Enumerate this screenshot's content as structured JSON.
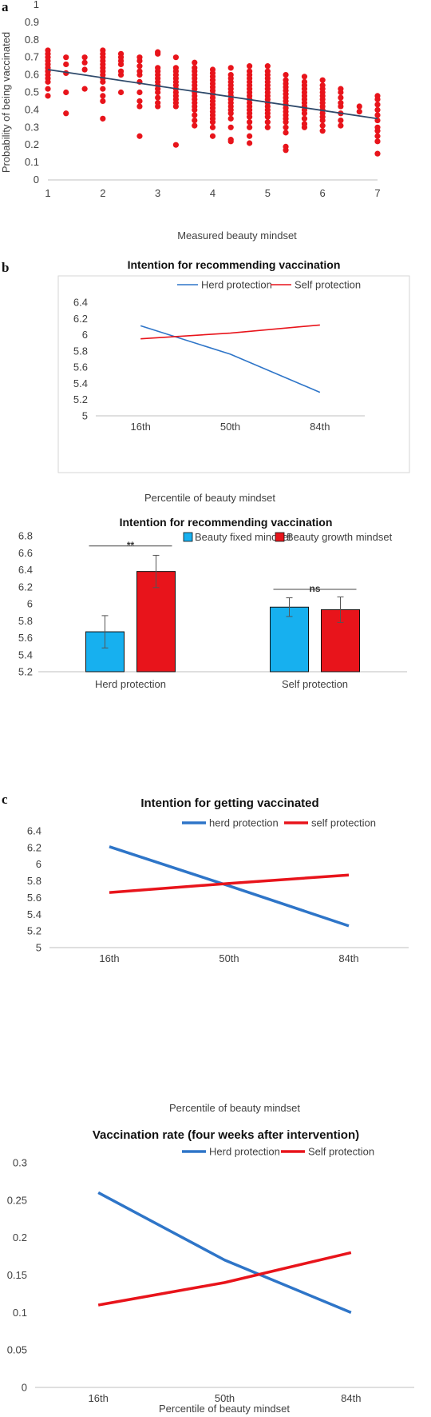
{
  "panel_labels": {
    "a": "a",
    "b": "b",
    "c": "c"
  },
  "chart_data": [
    {
      "id": "a",
      "type": "scatter",
      "title": "",
      "xlabel": "Measured beauty mindset",
      "ylabel": "Probability of being vaccinated",
      "xlim": [
        1,
        7
      ],
      "ylim": [
        0,
        1
      ],
      "xticks": [
        "1",
        "2",
        "3",
        "4",
        "5",
        "6",
        "7"
      ],
      "yticks": [
        "0",
        "0.1",
        "0.2",
        "0.3",
        "0.4",
        "0.5",
        "0.6",
        "0.7",
        "0.8",
        "0.9",
        "1"
      ],
      "point_color": "#e8141b",
      "trend_color": "#2f4a6b",
      "trendline": [
        [
          1,
          0.63
        ],
        [
          7,
          0.35
        ]
      ],
      "points": [
        [
          1,
          0.74
        ],
        [
          1,
          0.72
        ],
        [
          1,
          0.7
        ],
        [
          1,
          0.68
        ],
        [
          1,
          0.66
        ],
        [
          1,
          0.64
        ],
        [
          1,
          0.62
        ],
        [
          1,
          0.6
        ],
        [
          1,
          0.58
        ],
        [
          1,
          0.56
        ],
        [
          1,
          0.52
        ],
        [
          1,
          0.48
        ],
        [
          1.33,
          0.7
        ],
        [
          1.33,
          0.66
        ],
        [
          1.33,
          0.61
        ],
        [
          1.33,
          0.5
        ],
        [
          1.33,
          0.38
        ],
        [
          1.67,
          0.7
        ],
        [
          1.67,
          0.67
        ],
        [
          1.67,
          0.63
        ],
        [
          1.67,
          0.52
        ],
        [
          2,
          0.74
        ],
        [
          2,
          0.72
        ],
        [
          2,
          0.7
        ],
        [
          2,
          0.68
        ],
        [
          2,
          0.66
        ],
        [
          2,
          0.64
        ],
        [
          2,
          0.62
        ],
        [
          2,
          0.6
        ],
        [
          2,
          0.58
        ],
        [
          2,
          0.56
        ],
        [
          2,
          0.52
        ],
        [
          2,
          0.48
        ],
        [
          2,
          0.45
        ],
        [
          2,
          0.35
        ],
        [
          2.33,
          0.72
        ],
        [
          2.33,
          0.7
        ],
        [
          2.33,
          0.68
        ],
        [
          2.33,
          0.66
        ],
        [
          2.33,
          0.62
        ],
        [
          2.33,
          0.6
        ],
        [
          2.33,
          0.5
        ],
        [
          2.67,
          0.7
        ],
        [
          2.67,
          0.68
        ],
        [
          2.67,
          0.65
        ],
        [
          2.67,
          0.62
        ],
        [
          2.67,
          0.6
        ],
        [
          2.67,
          0.56
        ],
        [
          2.67,
          0.5
        ],
        [
          2.67,
          0.45
        ],
        [
          2.67,
          0.42
        ],
        [
          2.67,
          0.25
        ],
        [
          3,
          0.73
        ],
        [
          3,
          0.72
        ],
        [
          3,
          0.64
        ],
        [
          3,
          0.62
        ],
        [
          3,
          0.6
        ],
        [
          3,
          0.58
        ],
        [
          3,
          0.56
        ],
        [
          3,
          0.54
        ],
        [
          3,
          0.52
        ],
        [
          3,
          0.5
        ],
        [
          3,
          0.47
        ],
        [
          3,
          0.44
        ],
        [
          3,
          0.42
        ],
        [
          3.33,
          0.7
        ],
        [
          3.33,
          0.64
        ],
        [
          3.33,
          0.62
        ],
        [
          3.33,
          0.6
        ],
        [
          3.33,
          0.58
        ],
        [
          3.33,
          0.56
        ],
        [
          3.33,
          0.54
        ],
        [
          3.33,
          0.52
        ],
        [
          3.33,
          0.5
        ],
        [
          3.33,
          0.48
        ],
        [
          3.33,
          0.46
        ],
        [
          3.33,
          0.44
        ],
        [
          3.33,
          0.42
        ],
        [
          3.33,
          0.2
        ],
        [
          3.67,
          0.67
        ],
        [
          3.67,
          0.64
        ],
        [
          3.67,
          0.62
        ],
        [
          3.67,
          0.6
        ],
        [
          3.67,
          0.58
        ],
        [
          3.67,
          0.56
        ],
        [
          3.67,
          0.54
        ],
        [
          3.67,
          0.52
        ],
        [
          3.67,
          0.5
        ],
        [
          3.67,
          0.48
        ],
        [
          3.67,
          0.46
        ],
        [
          3.67,
          0.44
        ],
        [
          3.67,
          0.42
        ],
        [
          3.67,
          0.4
        ],
        [
          3.67,
          0.37
        ],
        [
          3.67,
          0.34
        ],
        [
          3.67,
          0.31
        ],
        [
          4,
          0.63
        ],
        [
          4,
          0.61
        ],
        [
          4,
          0.59
        ],
        [
          4,
          0.57
        ],
        [
          4,
          0.55
        ],
        [
          4,
          0.53
        ],
        [
          4,
          0.51
        ],
        [
          4,
          0.49
        ],
        [
          4,
          0.47
        ],
        [
          4,
          0.45
        ],
        [
          4,
          0.43
        ],
        [
          4,
          0.41
        ],
        [
          4,
          0.39
        ],
        [
          4,
          0.37
        ],
        [
          4,
          0.35
        ],
        [
          4,
          0.33
        ],
        [
          4,
          0.3
        ],
        [
          4,
          0.25
        ],
        [
          4.33,
          0.64
        ],
        [
          4.33,
          0.6
        ],
        [
          4.33,
          0.58
        ],
        [
          4.33,
          0.56
        ],
        [
          4.33,
          0.54
        ],
        [
          4.33,
          0.52
        ],
        [
          4.33,
          0.5
        ],
        [
          4.33,
          0.48
        ],
        [
          4.33,
          0.46
        ],
        [
          4.33,
          0.44
        ],
        [
          4.33,
          0.42
        ],
        [
          4.33,
          0.4
        ],
        [
          4.33,
          0.38
        ],
        [
          4.33,
          0.35
        ],
        [
          4.33,
          0.3
        ],
        [
          4.33,
          0.23
        ],
        [
          4.33,
          0.22
        ],
        [
          4.67,
          0.65
        ],
        [
          4.67,
          0.62
        ],
        [
          4.67,
          0.6
        ],
        [
          4.67,
          0.58
        ],
        [
          4.67,
          0.56
        ],
        [
          4.67,
          0.54
        ],
        [
          4.67,
          0.52
        ],
        [
          4.67,
          0.5
        ],
        [
          4.67,
          0.48
        ],
        [
          4.67,
          0.46
        ],
        [
          4.67,
          0.44
        ],
        [
          4.67,
          0.42
        ],
        [
          4.67,
          0.4
        ],
        [
          4.67,
          0.38
        ],
        [
          4.67,
          0.36
        ],
        [
          4.67,
          0.33
        ],
        [
          4.67,
          0.3
        ],
        [
          4.67,
          0.25
        ],
        [
          4.67,
          0.21
        ],
        [
          5,
          0.65
        ],
        [
          5,
          0.62
        ],
        [
          5,
          0.6
        ],
        [
          5,
          0.58
        ],
        [
          5,
          0.56
        ],
        [
          5,
          0.54
        ],
        [
          5,
          0.52
        ],
        [
          5,
          0.5
        ],
        [
          5,
          0.48
        ],
        [
          5,
          0.46
        ],
        [
          5,
          0.44
        ],
        [
          5,
          0.42
        ],
        [
          5,
          0.4
        ],
        [
          5,
          0.38
        ],
        [
          5,
          0.36
        ],
        [
          5,
          0.33
        ],
        [
          5,
          0.3
        ],
        [
          5.33,
          0.6
        ],
        [
          5.33,
          0.57
        ],
        [
          5.33,
          0.55
        ],
        [
          5.33,
          0.53
        ],
        [
          5.33,
          0.51
        ],
        [
          5.33,
          0.49
        ],
        [
          5.33,
          0.47
        ],
        [
          5.33,
          0.45
        ],
        [
          5.33,
          0.43
        ],
        [
          5.33,
          0.41
        ],
        [
          5.33,
          0.39
        ],
        [
          5.33,
          0.37
        ],
        [
          5.33,
          0.35
        ],
        [
          5.33,
          0.33
        ],
        [
          5.33,
          0.3
        ],
        [
          5.33,
          0.27
        ],
        [
          5.33,
          0.19
        ],
        [
          5.33,
          0.17
        ],
        [
          5.67,
          0.59
        ],
        [
          5.67,
          0.56
        ],
        [
          5.67,
          0.54
        ],
        [
          5.67,
          0.52
        ],
        [
          5.67,
          0.5
        ],
        [
          5.67,
          0.48
        ],
        [
          5.67,
          0.46
        ],
        [
          5.67,
          0.44
        ],
        [
          5.67,
          0.42
        ],
        [
          5.67,
          0.4
        ],
        [
          5.67,
          0.38
        ],
        [
          5.67,
          0.35
        ],
        [
          5.67,
          0.32
        ],
        [
          5.67,
          0.3
        ],
        [
          6,
          0.57
        ],
        [
          6,
          0.54
        ],
        [
          6,
          0.52
        ],
        [
          6,
          0.5
        ],
        [
          6,
          0.48
        ],
        [
          6,
          0.46
        ],
        [
          6,
          0.44
        ],
        [
          6,
          0.42
        ],
        [
          6,
          0.4
        ],
        [
          6,
          0.38
        ],
        [
          6,
          0.36
        ],
        [
          6,
          0.34
        ],
        [
          6,
          0.31
        ],
        [
          6,
          0.28
        ],
        [
          6.33,
          0.52
        ],
        [
          6.33,
          0.5
        ],
        [
          6.33,
          0.47
        ],
        [
          6.33,
          0.44
        ],
        [
          6.33,
          0.42
        ],
        [
          6.33,
          0.38
        ],
        [
          6.33,
          0.34
        ],
        [
          6.33,
          0.31
        ],
        [
          6.67,
          0.42
        ],
        [
          6.67,
          0.39
        ],
        [
          7,
          0.48
        ],
        [
          7,
          0.46
        ],
        [
          7,
          0.43
        ],
        [
          7,
          0.4
        ],
        [
          7,
          0.37
        ],
        [
          7,
          0.34
        ],
        [
          7,
          0.3
        ],
        [
          7,
          0.28
        ],
        [
          7,
          0.25
        ],
        [
          7,
          0.22
        ],
        [
          7,
          0.15
        ]
      ]
    },
    {
      "id": "b1",
      "type": "line",
      "title": "Intention for recommending vaccination",
      "xlabel": "Percentile of beauty mindset",
      "categories": [
        "16th",
        "50th",
        "84th"
      ],
      "ylim": [
        5,
        6.4
      ],
      "yticks": [
        "5",
        "5.2",
        "5.4",
        "5.6",
        "5.8",
        "6",
        "6.2",
        "6.4"
      ],
      "series": [
        {
          "name": "Herd protection",
          "color": "#2e75c8",
          "values": [
            6.11,
            5.76,
            5.29
          ]
        },
        {
          "name": "Self protection",
          "color": "#e8141b",
          "values": [
            5.95,
            6.02,
            6.12
          ]
        }
      ]
    },
    {
      "id": "b2",
      "type": "bar",
      "title": "Intention for recommending vaccination",
      "categories": [
        "Herd protection",
        "Self protection"
      ],
      "ylim": [
        5.2,
        6.8
      ],
      "yticks": [
        "5.2",
        "5.4",
        "5.6",
        "5.8",
        "6",
        "6.2",
        "6.4",
        "6.6",
        "6.8"
      ],
      "series": [
        {
          "name": "Beauty fixed mindset",
          "color": "#17b0ef",
          "values": [
            5.67,
            5.96
          ],
          "err": [
            0.19,
            0.11
          ]
        },
        {
          "name": "Beauty growth mindset",
          "color": "#e8141b",
          "values": [
            6.38,
            5.93
          ],
          "err": [
            0.19,
            0.15
          ]
        }
      ],
      "significance": [
        {
          "group": "Herd protection",
          "label": "**",
          "y": 6.68
        },
        {
          "group": "Self protection",
          "label": "ns",
          "y": 6.17
        }
      ]
    },
    {
      "id": "c1",
      "type": "line",
      "title": "Intention for getting vaccinated",
      "xlabel": "Percentile of beauty mindset",
      "categories": [
        "16th",
        "50th",
        "84th"
      ],
      "ylim": [
        5,
        6.4
      ],
      "yticks": [
        "5",
        "5.2",
        "5.4",
        "5.6",
        "5.8",
        "6",
        "6.2",
        "6.4"
      ],
      "series": [
        {
          "name": "herd protection",
          "color": "#2e75c8",
          "values": [
            6.21,
            5.74,
            5.26
          ]
        },
        {
          "name": "self protection",
          "color": "#e8141b",
          "values": [
            5.66,
            5.77,
            5.87
          ]
        }
      ]
    },
    {
      "id": "c2",
      "type": "line",
      "title": "Vaccination rate (four weeks after intervention)",
      "xlabel": "Percentile of beauty mindset",
      "categories": [
        "16th",
        "50th",
        "84th"
      ],
      "ylim": [
        0,
        0.3
      ],
      "yticks": [
        "0",
        "0.05",
        "0.1",
        "0.15",
        "0.2",
        "0.25",
        "0.3"
      ],
      "series": [
        {
          "name": "Herd protection",
          "color": "#2e75c8",
          "values": [
            0.26,
            0.17,
            0.1
          ]
        },
        {
          "name": "Self protection",
          "color": "#e8141b",
          "values": [
            0.11,
            0.14,
            0.18
          ]
        }
      ]
    }
  ]
}
